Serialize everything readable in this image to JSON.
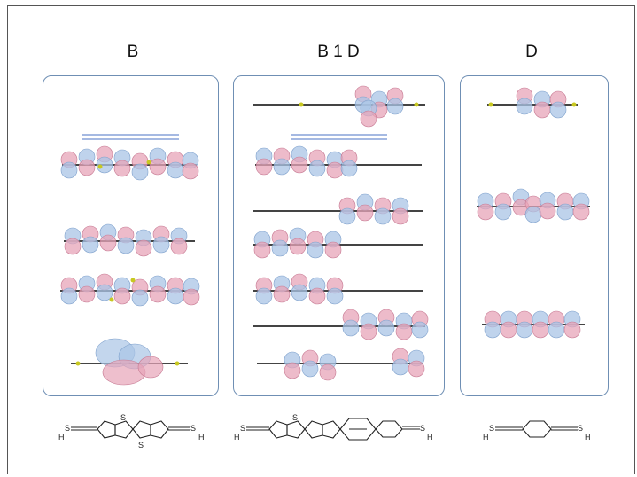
{
  "columns": [
    {
      "id": "b",
      "title": "B"
    },
    {
      "id": "b1d",
      "title": "B 1 D"
    },
    {
      "id": "d",
      "title": "D"
    }
  ],
  "structures": {
    "b": {
      "left_atom_h": "H",
      "left_atom_s": "S",
      "right_atom_s": "S",
      "right_atom_h": "H",
      "ring_atom": "S"
    },
    "b1d": {
      "left_atom_h": "H",
      "left_atom_s": "S",
      "right_atom_s": "S",
      "right_atom_h": "H",
      "ring_atom": "S"
    },
    "d": {
      "left_atom_h": "H",
      "left_atom_s": "S",
      "right_atom_s": "S",
      "right_atom_h": "H"
    }
  },
  "colors": {
    "panel_border": "#6f8fb4",
    "orbital_positive": "#e7a4b8",
    "orbital_negative": "#a9c4e6",
    "level_line": "#6f8fd0",
    "atom_carbon": "#444444",
    "atom_sulfur": "#c8c820"
  }
}
